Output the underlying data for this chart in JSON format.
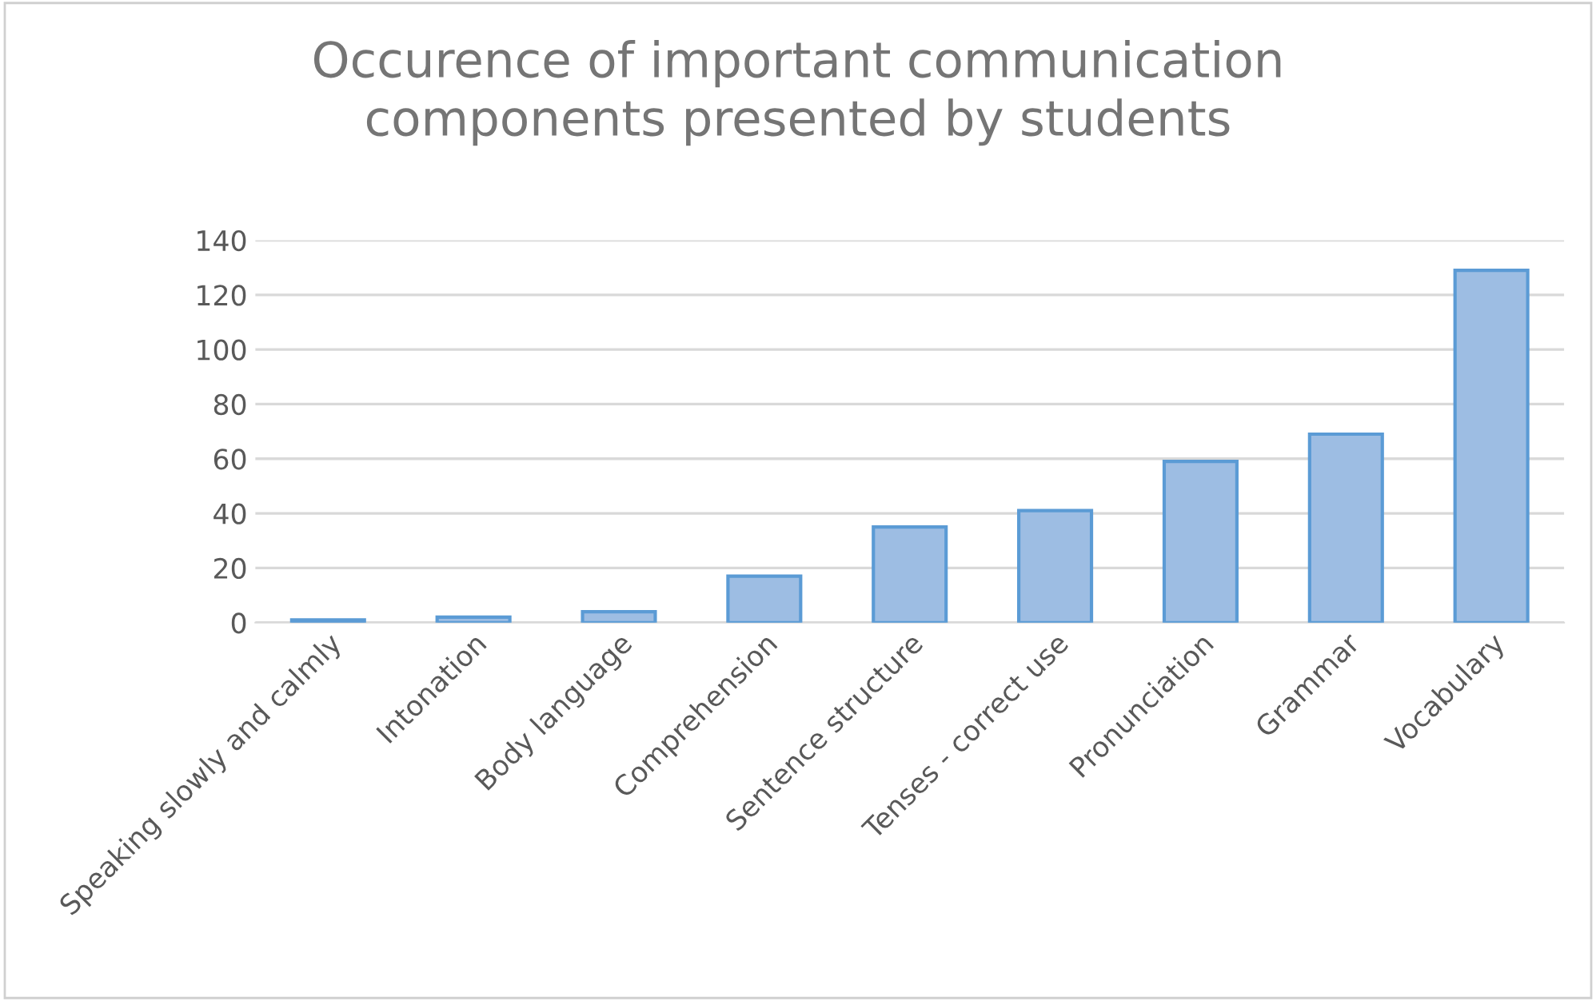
{
  "chart_data": {
    "type": "bar",
    "title": "Occurence of important communication\ncomponents presented by students",
    "categories": [
      "Speaking slowly and calmly",
      "Intonation",
      "Body language",
      "Comprehension",
      "Sentence structure",
      "Tenses - correct use",
      "Pronunciation",
      "Grammar",
      "Vocabulary"
    ],
    "values": [
      1,
      2,
      4,
      17,
      35,
      41,
      59,
      69,
      129
    ],
    "color": "#9dbde3",
    "ylim": [
      0,
      140
    ],
    "yticks": [
      0,
      20,
      40,
      60,
      80,
      100,
      120,
      140
    ],
    "grid": "y"
  }
}
